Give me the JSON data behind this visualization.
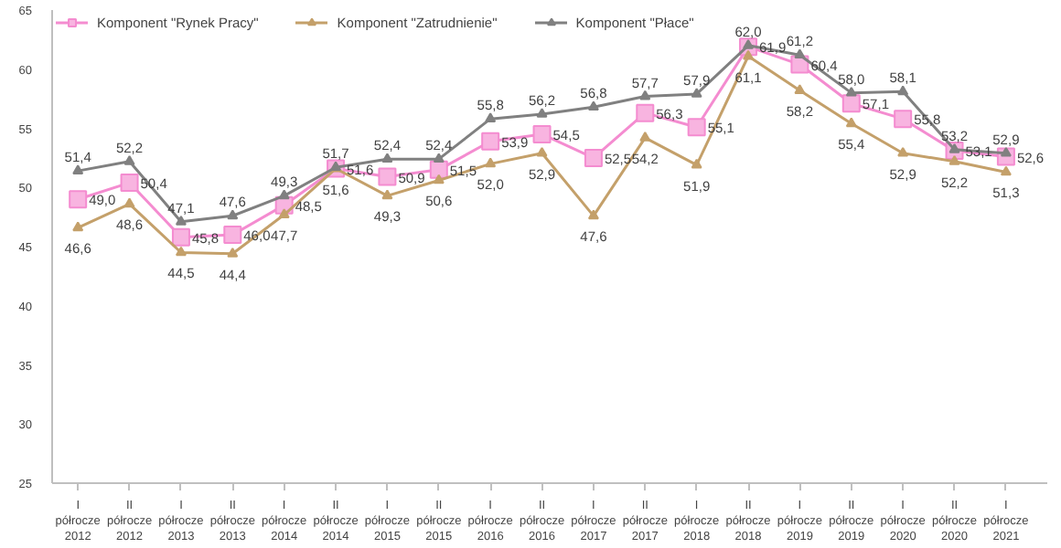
{
  "chart_data": {
    "type": "line",
    "categories": [
      "I półrocze 2012",
      "II półrocze 2012",
      "I półrocze 2013",
      "II półrocze 2013",
      "I półrocze 2014",
      "II półrocze 2014",
      "I półrocze 2015",
      "II półrocze 2015",
      "I półrocze 2016",
      "II półrocze 2016",
      "I półrocze 2017",
      "II półrocze 2017",
      "I półrocze 2018",
      "II półrocze 2018",
      "I półrocze 2019",
      "II półrocze 2019",
      "I półrocze 2020",
      "II półrocze 2020",
      "I półrocze 2021"
    ],
    "series": [
      {
        "name": "Komponent \"Rynek Pracy\"",
        "color": "#f48cd0",
        "marker": "square",
        "values": [
          49.0,
          50.4,
          45.8,
          46.0,
          48.5,
          51.6,
          50.9,
          51.5,
          53.9,
          54.5,
          52.5,
          56.3,
          55.1,
          61.9,
          60.4,
          57.1,
          55.8,
          53.1,
          52.6
        ],
        "value_labels": [
          "49,0",
          "50,4",
          "45,8",
          "46,0",
          "48,5",
          "51,6",
          "50,9",
          "51,5",
          "53,9",
          "54,5",
          "52,5",
          "56,3",
          "55,1",
          "61,9",
          "60,4",
          "57,1",
          "55,8",
          "53,1",
          "52,6"
        ]
      },
      {
        "name": "Komponent \"Zatrudnienie\"",
        "color": "#c4a06a",
        "marker": "triangle",
        "values": [
          46.6,
          48.6,
          44.5,
          44.4,
          47.7,
          51.6,
          49.3,
          50.6,
          52.0,
          52.9,
          47.6,
          54.2,
          51.9,
          61.1,
          58.2,
          55.4,
          52.9,
          52.2,
          51.3
        ],
        "value_labels": [
          "46,6",
          "48,6",
          "44,5",
          "44,4",
          "47,7",
          "51,6",
          "49,3",
          "50,6",
          "52,0",
          "52,9",
          "47,6",
          "54,2",
          "51,9",
          "61,1",
          "58,2",
          "55,4",
          "52,9",
          "52,2",
          "51,3"
        ]
      },
      {
        "name": "Komponent \"Płace\"",
        "color": "#808080",
        "marker": "triangle",
        "values": [
          51.4,
          52.2,
          47.1,
          47.6,
          49.3,
          51.7,
          52.4,
          52.4,
          55.8,
          56.2,
          56.8,
          57.7,
          57.9,
          62.0,
          61.2,
          58.0,
          58.1,
          53.2,
          52.9
        ],
        "value_labels": [
          "51,4",
          "52,2",
          "47,1",
          "47,6",
          "49,3",
          "51,7",
          "52,4",
          "52,4",
          "55,8",
          "56,2",
          "56,8",
          "57,7",
          "57,9",
          "62,0",
          "61,2",
          "58,0",
          "58,1",
          "53,2",
          "52,9"
        ]
      }
    ],
    "ylim": [
      25,
      65
    ],
    "yticks": [
      25,
      30,
      35,
      40,
      45,
      50,
      55,
      60,
      65
    ],
    "grid": false,
    "legend": "top",
    "line_style": "solid"
  }
}
